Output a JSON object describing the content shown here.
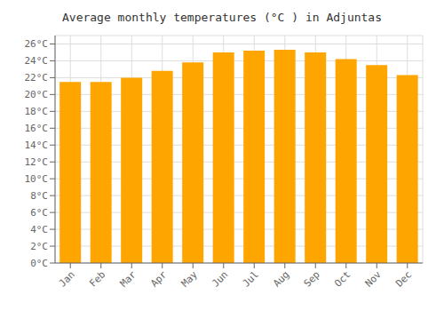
{
  "chart_data": {
    "type": "bar",
    "title": "Average monthly temperatures (°C ) in Adjuntas",
    "categories": [
      "Jan",
      "Feb",
      "Mar",
      "Apr",
      "May",
      "Jun",
      "Jul",
      "Aug",
      "Sep",
      "Oct",
      "Nov",
      "Dec"
    ],
    "values": [
      21.5,
      21.5,
      22.0,
      22.8,
      23.8,
      25.0,
      25.2,
      25.3,
      25.0,
      24.2,
      23.5,
      22.3
    ],
    "color": "#FFA500",
    "ylim": [
      0,
      27
    ],
    "yticks": [
      {
        "value": 0,
        "label": "0°C"
      },
      {
        "value": 2,
        "label": "2°C"
      },
      {
        "value": 4,
        "label": "4°C"
      },
      {
        "value": 6,
        "label": "6°C"
      },
      {
        "value": 8,
        "label": "8°C"
      },
      {
        "value": 10,
        "label": "10°C"
      },
      {
        "value": 12,
        "label": "12°C"
      },
      {
        "value": 14,
        "label": "14°C"
      },
      {
        "value": 16,
        "label": "16°C"
      },
      {
        "value": 18,
        "label": "18°C"
      },
      {
        "value": 20,
        "label": "20°C"
      },
      {
        "value": 22,
        "label": "22°C"
      },
      {
        "value": 24,
        "label": "24°C"
      },
      {
        "value": 26,
        "label": "26°C"
      }
    ],
    "grid": true
  }
}
